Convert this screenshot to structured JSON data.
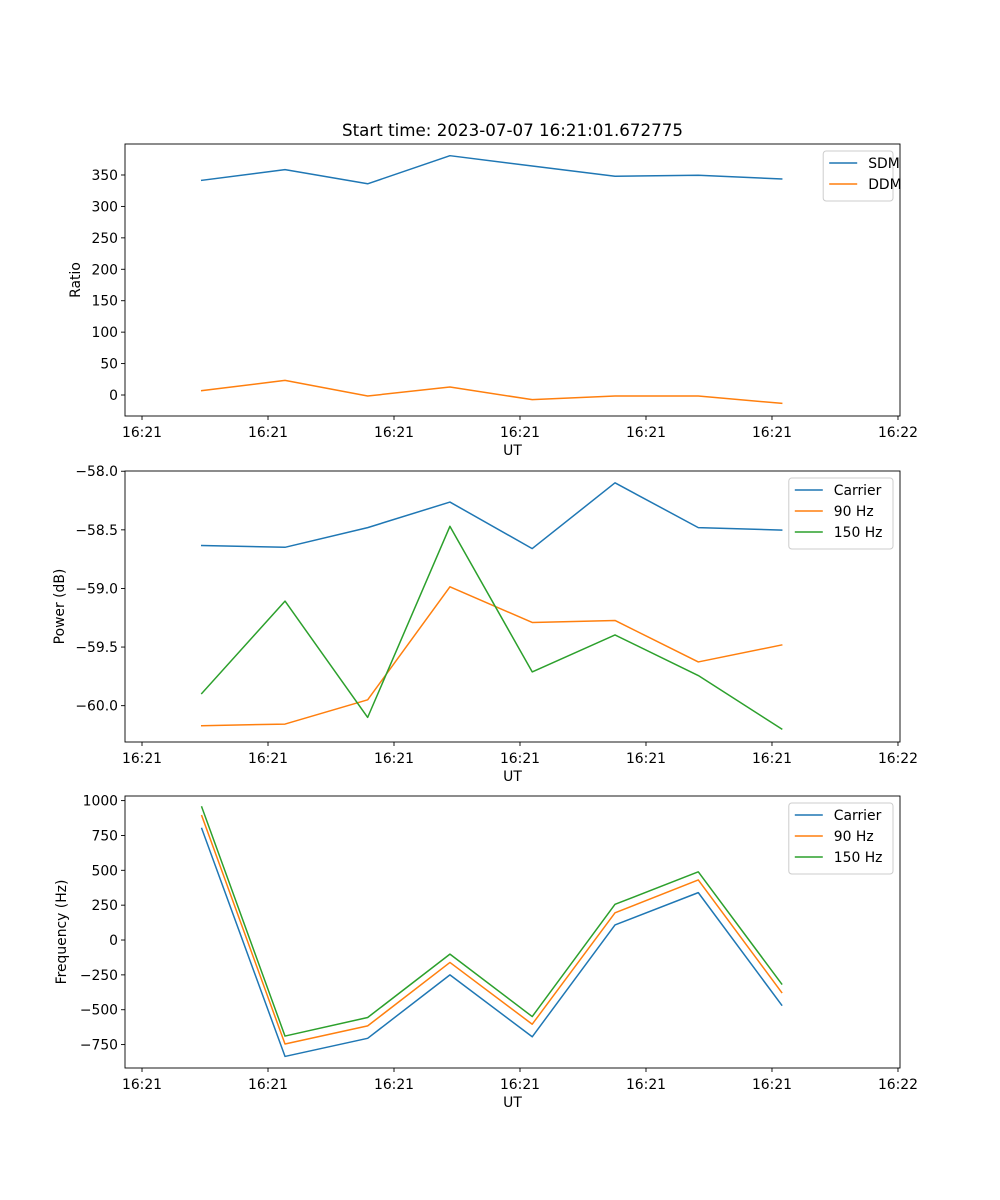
{
  "figure": {
    "title": "Start time: 2023-07-07 16:21:01.672775"
  },
  "chart_data": [
    {
      "type": "line",
      "title": "Start time: 2023-07-07 16:21:01.672775",
      "xlabel": "UT",
      "ylabel": "Ratio",
      "x_unit": "seconds after 16:21:00",
      "x": [
        4.74,
        11.35,
        17.91,
        24.44,
        30.97,
        37.54,
        44.15,
        50.77
      ],
      "xlim": [
        -1.35,
        60.16
      ],
      "xticks": [
        0,
        10,
        20,
        30,
        40,
        50,
        60
      ],
      "xtick_labels": [
        "16:21",
        "16:21",
        "16:21",
        "16:21",
        "16:21",
        "16:21",
        "16:22"
      ],
      "ylim": [
        -33.4,
        399.3
      ],
      "yticks": [
        0,
        50,
        100,
        150,
        200,
        250,
        300,
        350
      ],
      "ytick_labels": [
        "0",
        "50",
        "100",
        "150",
        "200",
        "250",
        "300",
        "350"
      ],
      "grid": false,
      "legend_position": "top-right",
      "series": [
        {
          "name": "SDM",
          "color": "#1f77b4",
          "values": [
            341.5,
            358.5,
            336.0,
            380.7,
            364.3,
            348.0,
            349.5,
            343.6
          ]
        },
        {
          "name": "DDM",
          "color": "#ff7f0e",
          "values": [
            6.9,
            23.3,
            -1.6,
            12.7,
            -7.4,
            -1.6,
            -1.6,
            -13.3
          ]
        }
      ]
    },
    {
      "type": "line",
      "title": "",
      "xlabel": "UT",
      "ylabel": "Power (dB)",
      "x_unit": "seconds after 16:21:00",
      "x": [
        4.74,
        11.35,
        17.91,
        24.44,
        30.97,
        37.54,
        44.15,
        50.77
      ],
      "xlim": [
        -1.35,
        60.16
      ],
      "xticks": [
        0,
        10,
        20,
        30,
        40,
        50,
        60
      ],
      "xtick_labels": [
        "16:21",
        "16:21",
        "16:21",
        "16:21",
        "16:21",
        "16:21",
        "16:22"
      ],
      "ylim": [
        -60.31,
        -57.998
      ],
      "yticks": [
        -60.0,
        -59.5,
        -59.0,
        -58.5,
        -58.0
      ],
      "ytick_labels": [
        "−60.0",
        "−59.5",
        "−59.0",
        "−58.5",
        "−58.0"
      ],
      "grid": false,
      "legend_position": "top-right",
      "series": [
        {
          "name": "Carrier",
          "color": "#1f77b4",
          "values": [
            -58.634,
            -58.649,
            -58.481,
            -58.263,
            -58.66,
            -58.099,
            -58.481,
            -58.502
          ]
        },
        {
          "name": "90 Hz",
          "color": "#ff7f0e",
          "values": [
            -60.171,
            -60.157,
            -59.95,
            -58.986,
            -59.29,
            -59.273,
            -59.627,
            -59.482
          ]
        },
        {
          "name": "150 Hz",
          "color": "#2ca02c",
          "values": [
            -59.896,
            -59.108,
            -60.1,
            -58.47,
            -59.712,
            -59.397,
            -59.743,
            -60.199
          ]
        }
      ]
    },
    {
      "type": "line",
      "title": "",
      "xlabel": "UT",
      "ylabel": "Frequency (Hz)",
      "x_unit": "seconds after 16:21:00",
      "x": [
        4.74,
        11.35,
        17.91,
        24.44,
        30.97,
        37.54,
        44.15,
        50.77
      ],
      "xlim": [
        -1.35,
        60.16
      ],
      "xticks": [
        0,
        10,
        20,
        30,
        40,
        50,
        60
      ],
      "xtick_labels": [
        "16:21",
        "16:21",
        "16:21",
        "16:21",
        "16:21",
        "16:21",
        "16:22"
      ],
      "ylim": [
        -918,
        1033
      ],
      "yticks": [
        -750,
        -500,
        -250,
        0,
        250,
        500,
        750,
        1000
      ],
      "ytick_labels": [
        "−750",
        "−500",
        "−250",
        "0",
        "250",
        "500",
        "750",
        "1000"
      ],
      "grid": false,
      "legend_position": "top-right",
      "series": [
        {
          "name": "Carrier",
          "color": "#1f77b4",
          "values": [
            800,
            -835,
            -705,
            -250,
            -694,
            108,
            340,
            -467
          ]
        },
        {
          "name": "90 Hz",
          "color": "#ff7f0e",
          "values": [
            892,
            -746,
            -616,
            -161,
            -604,
            195,
            431,
            -376
          ]
        },
        {
          "name": "150 Hz",
          "color": "#2ca02c",
          "values": [
            954,
            -689,
            -556,
            -101,
            -549,
            256,
            489,
            -315
          ]
        }
      ]
    }
  ]
}
